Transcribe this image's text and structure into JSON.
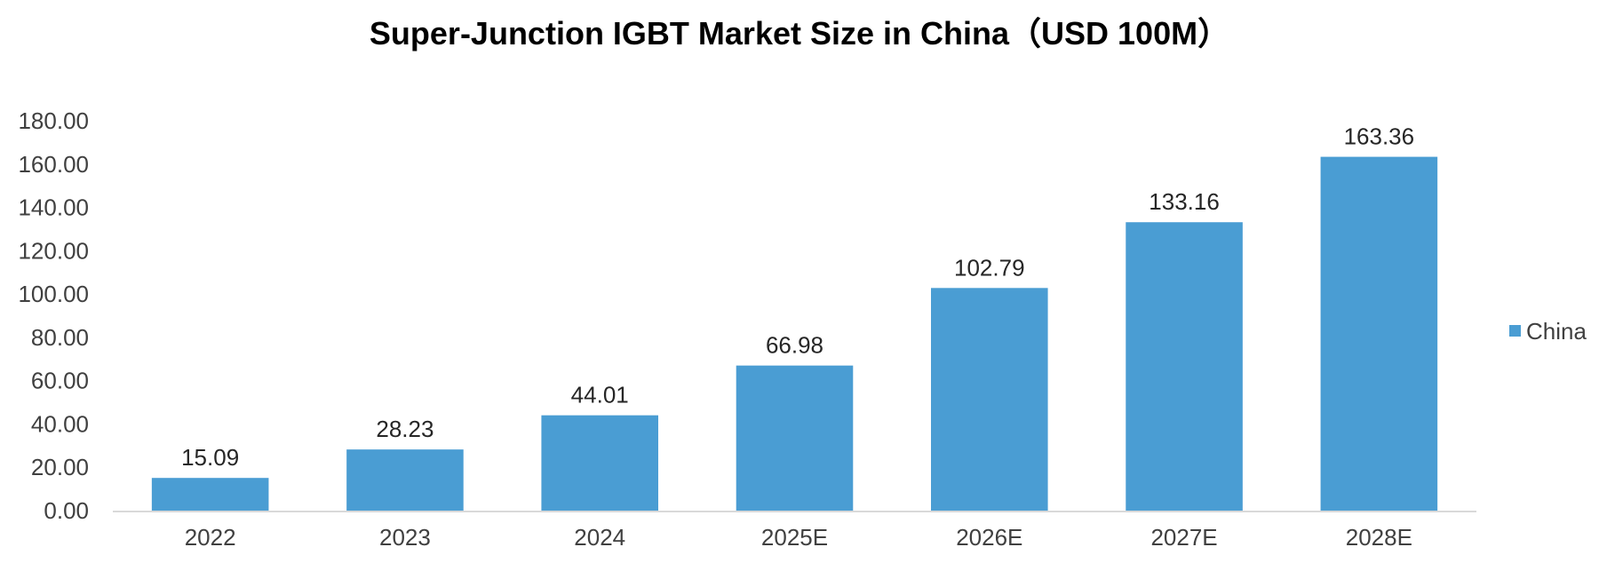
{
  "chart_data": {
    "type": "bar",
    "title": "Super-Junction IGBT Market Size in China（USD 100M）",
    "categories": [
      "2022",
      "2023",
      "2024",
      "2025E",
      "2026E",
      "2027E",
      "2028E"
    ],
    "series": [
      {
        "name": "China",
        "color": "#4A9DD3",
        "values": [
          15.09,
          28.23,
          44.01,
          66.98,
          102.79,
          133.16,
          163.36
        ]
      }
    ],
    "data_labels": [
      "15.09",
      "28.23",
      "44.01",
      "66.98",
      "102.79",
      "133.16",
      "163.36"
    ],
    "ylim": [
      0,
      180
    ],
    "yticks": [
      "0.00",
      "20.00",
      "40.00",
      "60.00",
      "80.00",
      "100.00",
      "120.00",
      "140.00",
      "160.00",
      "180.00"
    ],
    "ytick_values": [
      0,
      20,
      40,
      60,
      80,
      100,
      120,
      140,
      160,
      180
    ],
    "xlabel": "",
    "ylabel": "",
    "grid": false,
    "legend_position": "right"
  }
}
